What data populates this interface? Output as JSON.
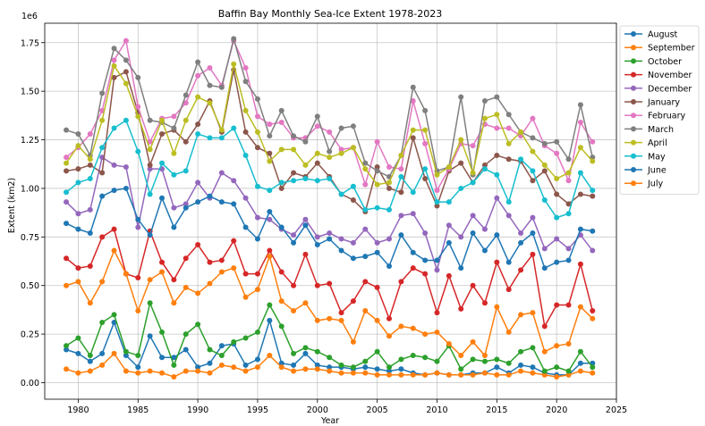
{
  "chart_data": {
    "type": "line",
    "title": "Baffin Bay Monthly Sea-Ice Extent 1978-2023",
    "xlabel": "Year",
    "ylabel": "Extent (km2)",
    "y_scale_label": "1e6",
    "xlim": [
      1977.2,
      2025
    ],
    "ylim": [
      -0.085,
      1.85
    ],
    "x_ticks": [
      "1980",
      "1985",
      "1990",
      "1995",
      "2000",
      "2005",
      "2010",
      "2015",
      "2020",
      "2025"
    ],
    "y_ticks": [
      "0.00",
      "0.25",
      "0.50",
      "0.75",
      "1.00",
      "1.25",
      "1.50",
      "1.75"
    ],
    "grid": true,
    "legend_position": "outside-right",
    "x": [
      1979,
      1980,
      1981,
      1982,
      1983,
      1984,
      1985,
      1986,
      1987,
      1988,
      1989,
      1990,
      1991,
      1992,
      1993,
      1994,
      1995,
      1996,
      1997,
      1998,
      1999,
      2000,
      2001,
      2002,
      2003,
      2004,
      2005,
      2006,
      2007,
      2008,
      2009,
      2010,
      2011,
      2012,
      2013,
      2014,
      2015,
      2016,
      2017,
      2018,
      2019,
      2020,
      2021,
      2022,
      2023
    ],
    "series": [
      {
        "name": "August",
        "color": "#1f77b4",
        "values": [
          0.17,
          0.15,
          0.11,
          0.15,
          0.31,
          0.14,
          0.08,
          0.24,
          0.13,
          0.13,
          0.17,
          0.08,
          0.1,
          0.19,
          0.2,
          0.09,
          0.12,
          0.32,
          0.1,
          0.09,
          0.15,
          0.09,
          0.08,
          0.08,
          0.07,
          0.08,
          0.07,
          0.06,
          0.07,
          0.05,
          0.04,
          0.05,
          0.04,
          0.04,
          0.05,
          0.05,
          0.08,
          0.05,
          0.09,
          0.08,
          0.05,
          0.04,
          0.04,
          0.1,
          0.1
        ]
      },
      {
        "name": "September",
        "color": "#ff7f0e",
        "values": [
          0.07,
          0.05,
          0.06,
          0.09,
          0.15,
          0.06,
          0.05,
          0.06,
          0.05,
          0.03,
          0.06,
          0.06,
          0.05,
          0.09,
          0.08,
          0.06,
          0.08,
          0.14,
          0.08,
          0.06,
          0.07,
          0.07,
          0.06,
          0.05,
          0.05,
          0.05,
          0.04,
          0.04,
          0.04,
          0.04,
          0.04,
          0.05,
          0.04,
          0.04,
          0.04,
          0.05,
          0.04,
          0.04,
          0.06,
          0.05,
          0.04,
          0.03,
          0.04,
          0.06,
          0.05
        ]
      },
      {
        "name": "October",
        "color": "#2ca02c",
        "values": [
          0.19,
          0.23,
          0.14,
          0.31,
          0.35,
          0.16,
          0.14,
          0.41,
          0.26,
          0.09,
          0.25,
          0.3,
          0.17,
          0.14,
          0.21,
          0.23,
          0.26,
          0.4,
          0.29,
          0.15,
          0.18,
          0.16,
          0.13,
          0.09,
          0.08,
          0.11,
          0.16,
          0.08,
          0.12,
          0.14,
          0.13,
          0.11,
          0.19,
          0.07,
          0.12,
          0.11,
          0.12,
          0.1,
          0.16,
          0.18,
          0.06,
          0.08,
          0.06,
          0.16,
          0.08
        ]
      },
      {
        "name": "November",
        "color": "#d62728",
        "values": [
          0.64,
          0.59,
          0.6,
          0.75,
          0.79,
          0.56,
          0.54,
          0.78,
          0.62,
          0.53,
          0.64,
          0.71,
          0.62,
          0.63,
          0.73,
          0.56,
          0.56,
          0.68,
          0.57,
          0.5,
          0.66,
          0.5,
          0.51,
          0.36,
          0.42,
          0.52,
          0.49,
          0.33,
          0.52,
          0.59,
          0.56,
          0.36,
          0.55,
          0.38,
          0.5,
          0.41,
          0.62,
          0.48,
          0.58,
          0.66,
          0.29,
          0.4,
          0.4,
          0.61,
          0.37
        ]
      },
      {
        "name": "December",
        "color": "#9467bd",
        "values": [
          0.93,
          0.87,
          0.89,
          1.16,
          1.12,
          1.11,
          0.8,
          1.1,
          1.1,
          0.9,
          0.92,
          1.03,
          0.95,
          1.08,
          1.04,
          0.95,
          0.85,
          0.84,
          0.79,
          0.76,
          0.84,
          0.75,
          0.77,
          0.74,
          0.72,
          0.79,
          0.72,
          0.74,
          0.86,
          0.87,
          0.77,
          0.58,
          0.81,
          0.75,
          0.86,
          0.79,
          0.95,
          0.86,
          0.77,
          0.85,
          0.69,
          0.74,
          0.69,
          0.76,
          0.68
        ]
      },
      {
        "name": "January",
        "color": "#8c564b",
        "values": [
          1.09,
          1.1,
          1.12,
          1.08,
          1.57,
          1.6,
          1.39,
          1.12,
          1.28,
          1.3,
          1.24,
          1.33,
          1.45,
          1.29,
          1.61,
          1.29,
          1.21,
          1.18,
          1.0,
          1.08,
          1.06,
          1.13,
          1.06,
          0.97,
          0.94,
          0.88,
          1.11,
          1.0,
          0.98,
          1.26,
          1.05,
          0.91,
          1.09,
          1.13,
          1.03,
          1.12,
          1.17,
          1.15,
          1.14,
          1.04,
          1.09,
          0.97,
          0.92,
          0.97,
          0.96
        ]
      },
      {
        "name": "February",
        "color": "#e377c2",
        "values": [
          1.16,
          1.21,
          1.28,
          1.4,
          1.66,
          1.76,
          1.42,
          1.24,
          1.36,
          1.37,
          1.44,
          1.58,
          1.62,
          1.53,
          1.76,
          1.62,
          1.37,
          1.33,
          1.34,
          1.26,
          1.26,
          1.32,
          1.29,
          1.2,
          1.21,
          1.02,
          1.24,
          1.11,
          1.1,
          1.45,
          1.23,
          0.99,
          1.1,
          1.23,
          1.22,
          1.33,
          1.31,
          1.31,
          1.27,
          1.36,
          1.22,
          1.18,
          1.04,
          1.34,
          1.24
        ]
      },
      {
        "name": "March",
        "color": "#7f7f7f",
        "values": [
          1.3,
          1.28,
          1.17,
          1.49,
          1.72,
          1.66,
          1.57,
          1.35,
          1.34,
          1.31,
          1.48,
          1.65,
          1.53,
          1.52,
          1.77,
          1.55,
          1.46,
          1.27,
          1.4,
          1.27,
          1.24,
          1.37,
          1.19,
          1.31,
          1.32,
          1.13,
          1.09,
          1.06,
          1.17,
          1.52,
          1.4,
          1.09,
          1.11,
          1.47,
          1.07,
          1.45,
          1.47,
          1.38,
          1.29,
          1.26,
          1.23,
          1.24,
          1.15,
          1.43,
          1.16
        ]
      },
      {
        "name": "April",
        "color": "#bcbd22",
        "values": [
          1.13,
          1.22,
          1.15,
          1.35,
          1.63,
          1.54,
          1.37,
          1.2,
          1.35,
          1.18,
          1.35,
          1.47,
          1.44,
          1.3,
          1.64,
          1.4,
          1.29,
          1.14,
          1.2,
          1.2,
          1.12,
          1.18,
          1.16,
          1.18,
          1.21,
          1.1,
          1.02,
          1.03,
          1.17,
          1.3,
          1.3,
          1.07,
          1.11,
          1.25,
          1.08,
          1.36,
          1.38,
          1.23,
          1.29,
          1.19,
          1.12,
          1.05,
          1.08,
          1.21,
          1.14
        ]
      },
      {
        "name": "May",
        "color": "#17becf",
        "values": [
          0.98,
          1.03,
          1.05,
          1.21,
          1.31,
          1.35,
          1.19,
          0.97,
          1.13,
          1.07,
          1.09,
          1.28,
          1.26,
          1.26,
          1.31,
          1.17,
          1.01,
          0.99,
          1.03,
          1.04,
          1.05,
          1.04,
          1.05,
          0.97,
          1.01,
          0.89,
          0.9,
          0.89,
          1.06,
          0.98,
          1.1,
          0.93,
          0.93,
          1.0,
          1.03,
          1.1,
          1.07,
          0.93,
          1.15,
          1.09,
          0.94,
          0.85,
          0.87,
          1.08,
          0.99
        ]
      },
      {
        "name": "June",
        "color": "#1f77b4",
        "values": [
          0.82,
          0.79,
          0.77,
          0.96,
          0.99,
          1.0,
          0.84,
          0.76,
          0.95,
          0.8,
          0.9,
          0.93,
          0.96,
          0.93,
          0.92,
          0.8,
          0.74,
          0.88,
          0.8,
          0.72,
          0.81,
          0.71,
          0.74,
          0.68,
          0.64,
          0.65,
          0.67,
          0.6,
          0.76,
          0.67,
          0.63,
          0.63,
          0.72,
          0.59,
          0.77,
          0.68,
          0.76,
          0.62,
          0.72,
          0.77,
          0.59,
          0.62,
          0.63,
          0.79,
          0.78
        ]
      },
      {
        "name": "July",
        "color": "#ff7f0e",
        "values": [
          0.5,
          0.52,
          0.41,
          0.52,
          0.68,
          0.56,
          0.37,
          0.53,
          0.57,
          0.41,
          0.49,
          0.46,
          0.51,
          0.57,
          0.59,
          0.44,
          0.48,
          0.65,
          0.42,
          0.37,
          0.41,
          0.32,
          0.33,
          0.32,
          0.21,
          0.37,
          0.32,
          0.24,
          0.29,
          0.28,
          0.25,
          0.26,
          0.2,
          0.14,
          0.21,
          0.14,
          0.39,
          0.26,
          0.35,
          0.36,
          0.16,
          0.19,
          0.2,
          0.39,
          0.33
        ]
      }
    ]
  }
}
